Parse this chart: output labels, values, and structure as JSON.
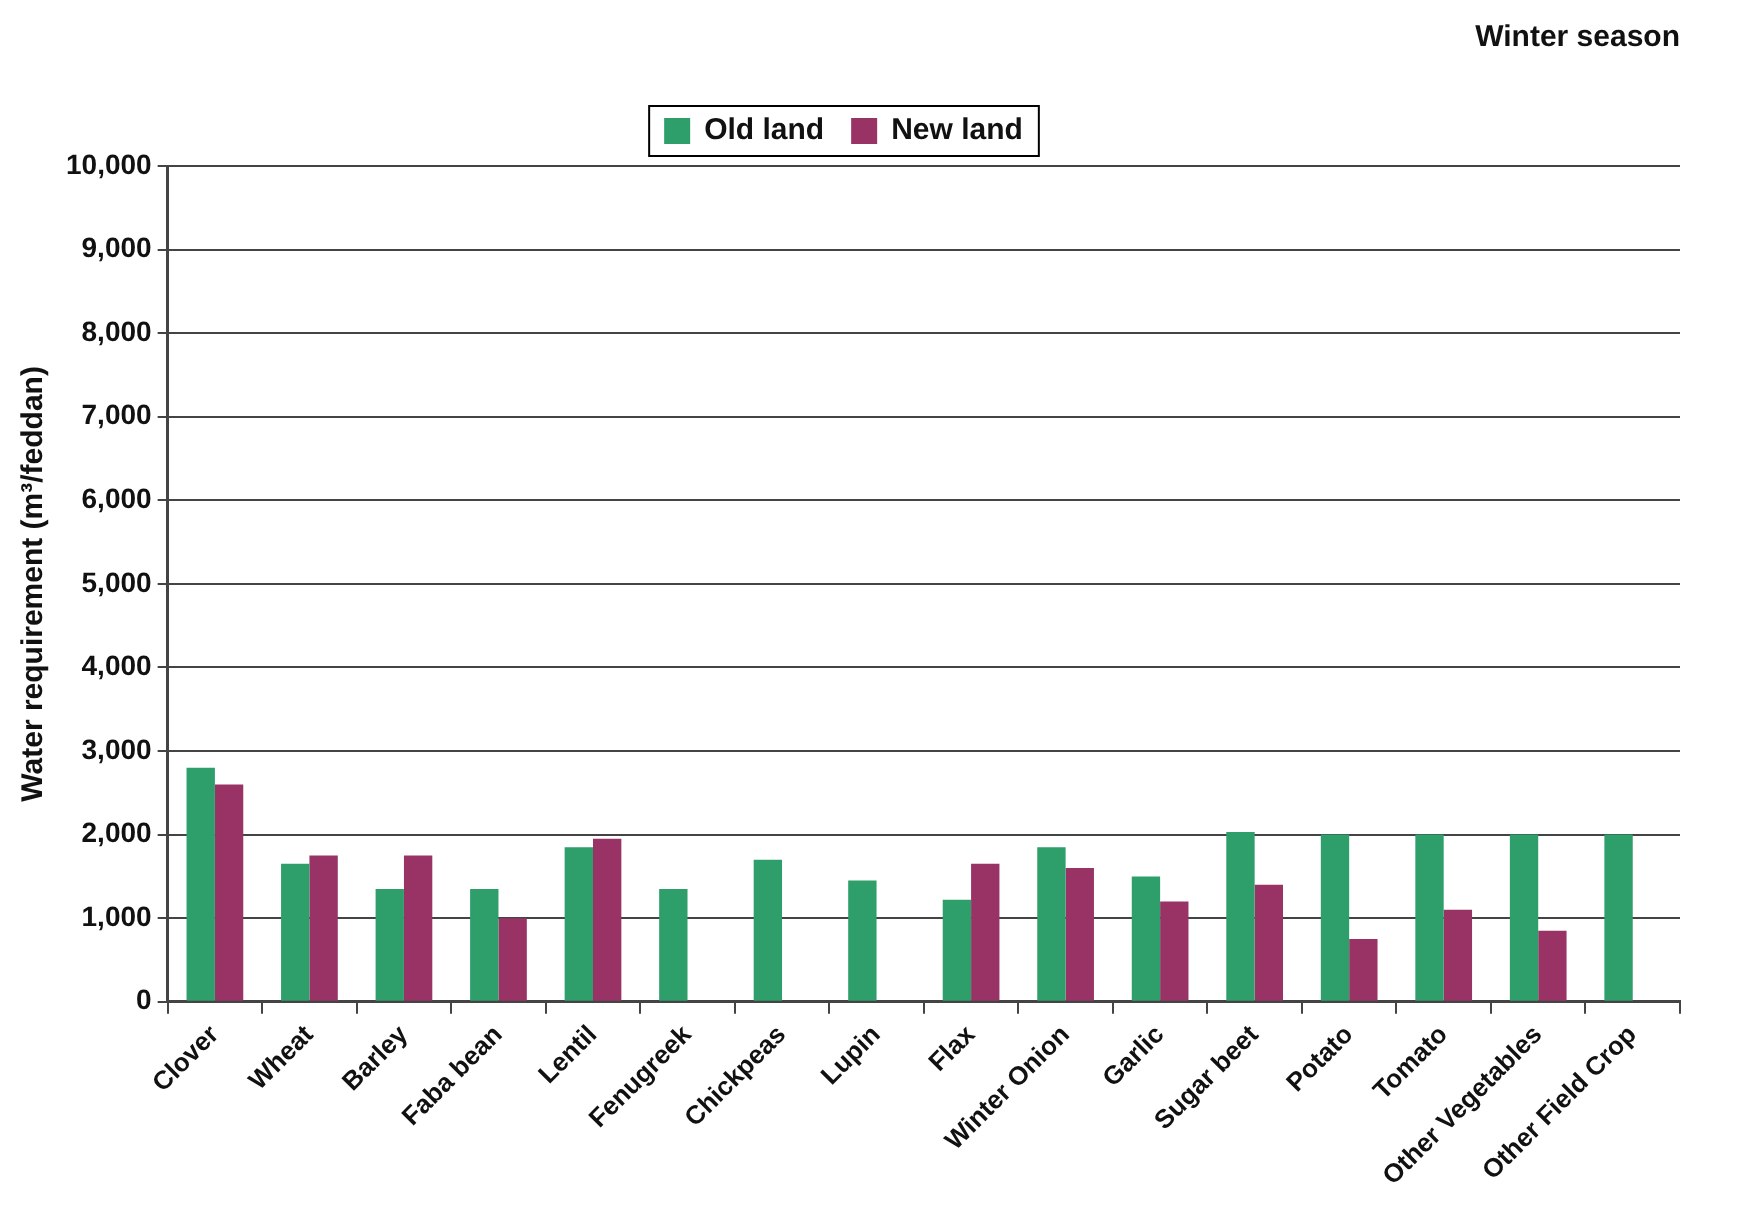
{
  "chart_data": {
    "type": "bar",
    "title": "Winter season",
    "ylabel": "Water requirement (m³/feddan)",
    "categories": [
      "Clover",
      "Wheat",
      "Barley",
      "Faba bean",
      "Lentil",
      "Fenugreek",
      "Chickpeas",
      "Lupin",
      "Flax",
      "Winter Onion",
      "Garlic",
      "Sugar beet",
      "Potato",
      "Tomato",
      "Other Vegetables",
      "Other Field Crop"
    ],
    "series": [
      {
        "name": "Old land",
        "color": "#2e9e6a",
        "values": [
          2800,
          1650,
          1350,
          1350,
          1850,
          1350,
          1700,
          1450,
          1220,
          1850,
          1500,
          2030,
          2000,
          2000,
          2000,
          2000
        ]
      },
      {
        "name": "New land",
        "color": "#993366",
        "values": [
          2600,
          1750,
          1750,
          1000,
          1950,
          null,
          null,
          null,
          1650,
          1600,
          1200,
          1400,
          750,
          1100,
          850,
          null
        ]
      }
    ],
    "ylim": [
      0,
      10000
    ],
    "yticks": [
      {
        "value": 0,
        "label": "0"
      },
      {
        "value": 1000,
        "label": "1,000"
      },
      {
        "value": 2000,
        "label": "2,000"
      },
      {
        "value": 3000,
        "label": "3,000"
      },
      {
        "value": 4000,
        "label": "4,000"
      },
      {
        "value": 5000,
        "label": "5,000"
      },
      {
        "value": 6000,
        "label": "6,000"
      },
      {
        "value": 7000,
        "label": "7,000"
      },
      {
        "value": 8000,
        "label": "8,000"
      },
      {
        "value": 9000,
        "label": "9,000"
      },
      {
        "value": 10000,
        "label": "10,000"
      }
    ],
    "grid": "y",
    "legend": "top"
  }
}
